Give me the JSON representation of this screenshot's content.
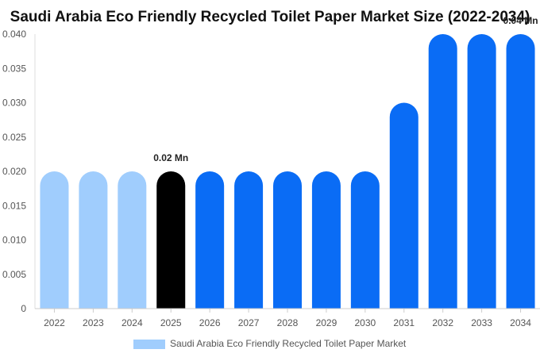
{
  "chart_data": {
    "type": "bar",
    "title": "Saudi Arabia Eco Friendly Recycled Toilet Paper Market Size (2022-2034)",
    "xlabel": "",
    "ylabel": "",
    "categories": [
      "2022",
      "2023",
      "2024",
      "2025",
      "2026",
      "2027",
      "2028",
      "2029",
      "2030",
      "2031",
      "2032",
      "2033",
      "2034"
    ],
    "values": [
      0.02,
      0.02,
      0.02,
      0.02,
      0.02,
      0.02,
      0.02,
      0.02,
      0.02,
      0.03,
      0.04,
      0.04,
      0.04
    ],
    "ylim": [
      0,
      0.04
    ],
    "yticks": [
      "0",
      "0.005",
      "0.010",
      "0.015",
      "0.020",
      "0.025",
      "0.030",
      "0.035",
      "0.040"
    ],
    "data_labels": [
      {
        "category": "2025",
        "text": "0.02 Mn"
      },
      {
        "category": "2034",
        "text": "0.04 Mn"
      }
    ],
    "bar_colors": [
      "#a0cdfd",
      "#a0cdfd",
      "#a0cdfd",
      "#000000",
      "#0a6cf5",
      "#0a6cf5",
      "#0a6cf5",
      "#0a6cf5",
      "#0a6cf5",
      "#0a6cf5",
      "#0a6cf5",
      "#0a6cf5",
      "#0a6cf5"
    ],
    "legend": {
      "position": "bottom",
      "label": "Saudi Arabia Eco Friendly Recycled Toilet Paper Market",
      "color": "#a0cdfd"
    },
    "grid": false
  }
}
